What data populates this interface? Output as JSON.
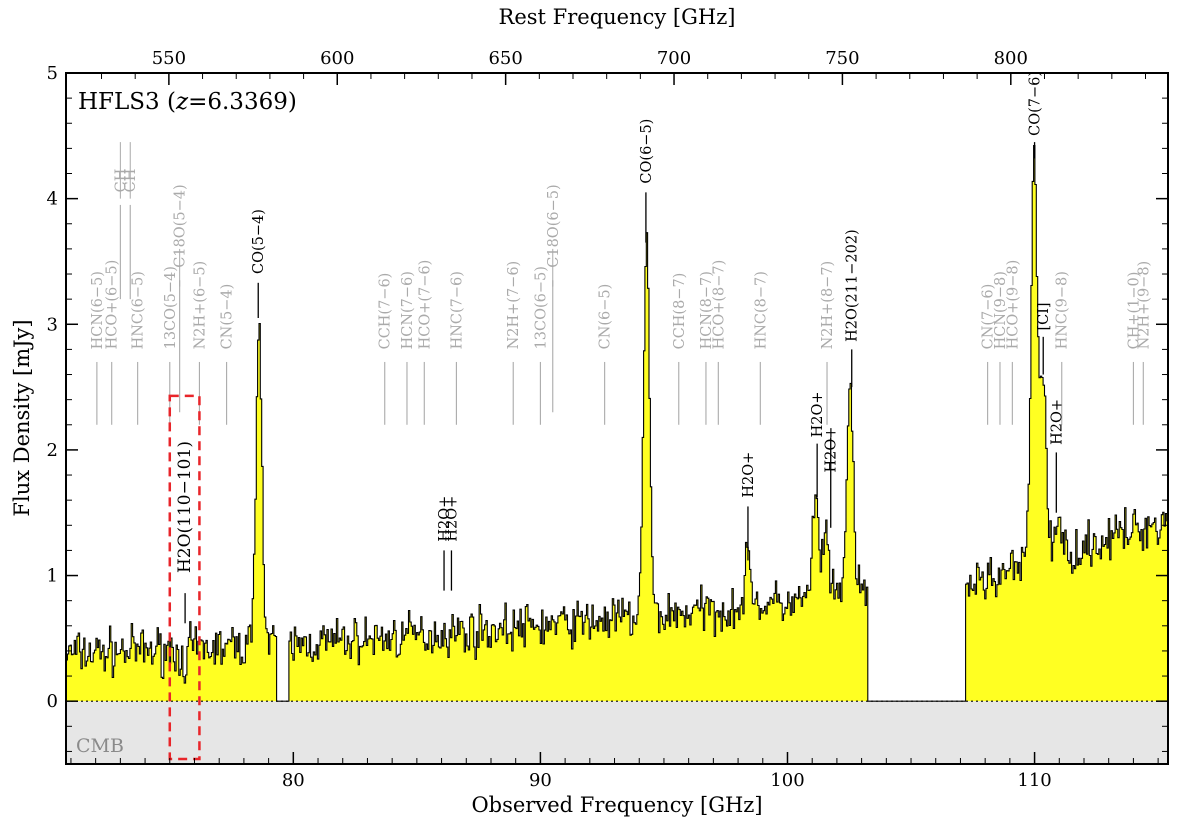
{
  "chart_data": {
    "type": "area",
    "title": "HFLS3 (z=6.3369)",
    "title_parts": {
      "name": "HFLS3 (",
      "z": "z",
      "eq": "=6.3369)"
    },
    "xlabel": "Observed Frequency [GHz]",
    "ylabel": "Flux Density [mJy]",
    "x2label": "Rest Frequency [GHz]",
    "redshift": 6.3369,
    "xlim": [
      70.8,
      115.4
    ],
    "ylim": [
      -0.5,
      5
    ],
    "x_ticks": [
      80,
      90,
      100,
      110
    ],
    "y_ticks": [
      0,
      1,
      2,
      3,
      4,
      5
    ],
    "x2_ticks": [
      550,
      600,
      650,
      700,
      750,
      800
    ],
    "grid": false,
    "fill_color": "#ffff22",
    "cmb_fill_color": "#e6e6e6",
    "cmb_label": "CMB",
    "highlight_box_color": "#e8252a",
    "highlight_box_x": [
      75.0,
      76.2
    ],
    "gap_ranges": [
      [
        79.3,
        79.8
      ],
      [
        103.2,
        107.2
      ]
    ],
    "continuum": [
      [
        70.8,
        0.38
      ],
      [
        80,
        0.45
      ],
      [
        90,
        0.6
      ],
      [
        100,
        0.78
      ],
      [
        103.2,
        0.85
      ],
      [
        107.2,
        0.92
      ],
      [
        115.4,
        1.45
      ]
    ],
    "line_peaks": [
      {
        "x": 75.56,
        "y": -0.4,
        "w": 0.06
      },
      {
        "x": 78.58,
        "y": 3.05,
        "w": 0.12
      },
      {
        "x": 94.27,
        "y": 3.65,
        "w": 0.12
      },
      {
        "x": 98.4,
        "y": 1.12,
        "w": 0.14
      },
      {
        "x": 101.1,
        "y": 1.6,
        "w": 0.12
      },
      {
        "x": 101.5,
        "y": 1.35,
        "w": 0.12
      },
      {
        "x": 102.5,
        "y": 2.5,
        "w": 0.13
      },
      {
        "x": 109.95,
        "y": 4.32,
        "w": 0.12
      },
      {
        "x": 110.3,
        "y": 2.6,
        "w": 0.14
      },
      {
        "x": 110.9,
        "y": 1.4,
        "w": 0.14
      }
    ],
    "noise_seed": 7,
    "noise_amplitude": 0.11,
    "detected_lines": [
      {
        "label": "CO(5−4)",
        "x": 78.58,
        "tick": [
          3.05,
          3.33
        ],
        "text_y": 3.4
      },
      {
        "label": "CO(6−5)",
        "x": 94.27,
        "tick": [
          3.65,
          4.05
        ],
        "text_y": 4.12
      },
      {
        "label": "CO(7−6)",
        "x": 110.0,
        "tick": [
          4.32,
          4.45
        ],
        "text_y": 4.5,
        "overline": true
      },
      {
        "label": "H2O(211−202)",
        "x": 102.6,
        "tick": [
          2.5,
          2.8
        ],
        "text_y": 2.86
      },
      {
        "label": "[CI]",
        "x": 110.35,
        "tick": [
          2.6,
          2.9
        ],
        "text_y": 2.95,
        "overline": true
      },
      {
        "label": "H2O+",
        "x": 110.88,
        "tick": [
          1.5,
          1.98
        ],
        "text_y": 2.04
      },
      {
        "label": "H2O+",
        "x": 98.4,
        "tick": [
          1.12,
          1.55
        ],
        "text_y": 1.62
      },
      {
        "label": "H2O+",
        "x": 101.2,
        "tick": [
          1.62,
          2.05
        ],
        "text_y": 2.1
      },
      {
        "label": "H2O+",
        "x": 101.75,
        "tick": [
          1.38,
          2.1
        ],
        "text_y": 1.82,
        "overline": true
      },
      {
        "label": "H2O+",
        "x": 86.1,
        "tick": [
          0.88,
          1.2
        ],
        "text_y": 1.27,
        "overline": true
      },
      {
        "label": "H2O+",
        "x": 86.4,
        "tick": [
          0.88,
          1.2
        ],
        "text_y": 1.27
      },
      {
        "label": "H2O(110−101)",
        "x": 75.62,
        "tick": [
          0.62,
          0.86
        ],
        "text_y": 1.02
      }
    ],
    "candidate_lines": [
      {
        "label": "HCN(6−5)",
        "x": 72.05
      },
      {
        "label": "HCO+(6−5)",
        "x": 72.65
      },
      {
        "label": "HNC(6−5)",
        "x": 73.7
      },
      {
        "label": "13CO(5−4)",
        "x": 75.0
      },
      {
        "label": "N2H+(6−5)",
        "x": 76.2
      },
      {
        "label": "CN(5−4)",
        "x": 77.3
      },
      {
        "label": "CCH(7−6)",
        "x": 83.7
      },
      {
        "label": "HCN(7−6)",
        "x": 84.6
      },
      {
        "label": "HCO+(7−6)",
        "x": 85.3
      },
      {
        "label": "HNC(7−6)",
        "x": 86.6
      },
      {
        "label": "N2H+(7−6)",
        "x": 88.9
      },
      {
        "label": "13CO(6−5)",
        "x": 90.0
      },
      {
        "label": "CN(6−5)",
        "x": 92.6
      },
      {
        "label": "CCH(8−7)",
        "x": 95.6
      },
      {
        "label": "HCN(8−7)",
        "x": 96.7
      },
      {
        "label": "HCO+(8−7)",
        "x": 97.2
      },
      {
        "label": "HNC(8−7)",
        "x": 98.9
      },
      {
        "label": "N2H+(8−7)",
        "x": 101.6
      },
      {
        "label": "CN(7−6)",
        "x": 108.1
      },
      {
        "label": "HCN(9−8)",
        "x": 108.6
      },
      {
        "label": "HCO+(9−8)",
        "x": 109.1
      },
      {
        "label": "HNC(9−8)",
        "x": 111.1
      },
      {
        "label": "CH+(1−0)",
        "x": 114.0
      },
      {
        "label": "N2H+(9−8)",
        "x": 114.4
      },
      {
        "label": "C18O(5−4)",
        "x": 75.4,
        "high": true
      },
      {
        "label": "C18O(6−5)",
        "x": 90.5,
        "high": true
      },
      {
        "label": "CH",
        "x": 73.0,
        "high": true,
        "top": true
      },
      {
        "label": "CH",
        "x": 73.4,
        "high": true,
        "top": true
      }
    ]
  }
}
